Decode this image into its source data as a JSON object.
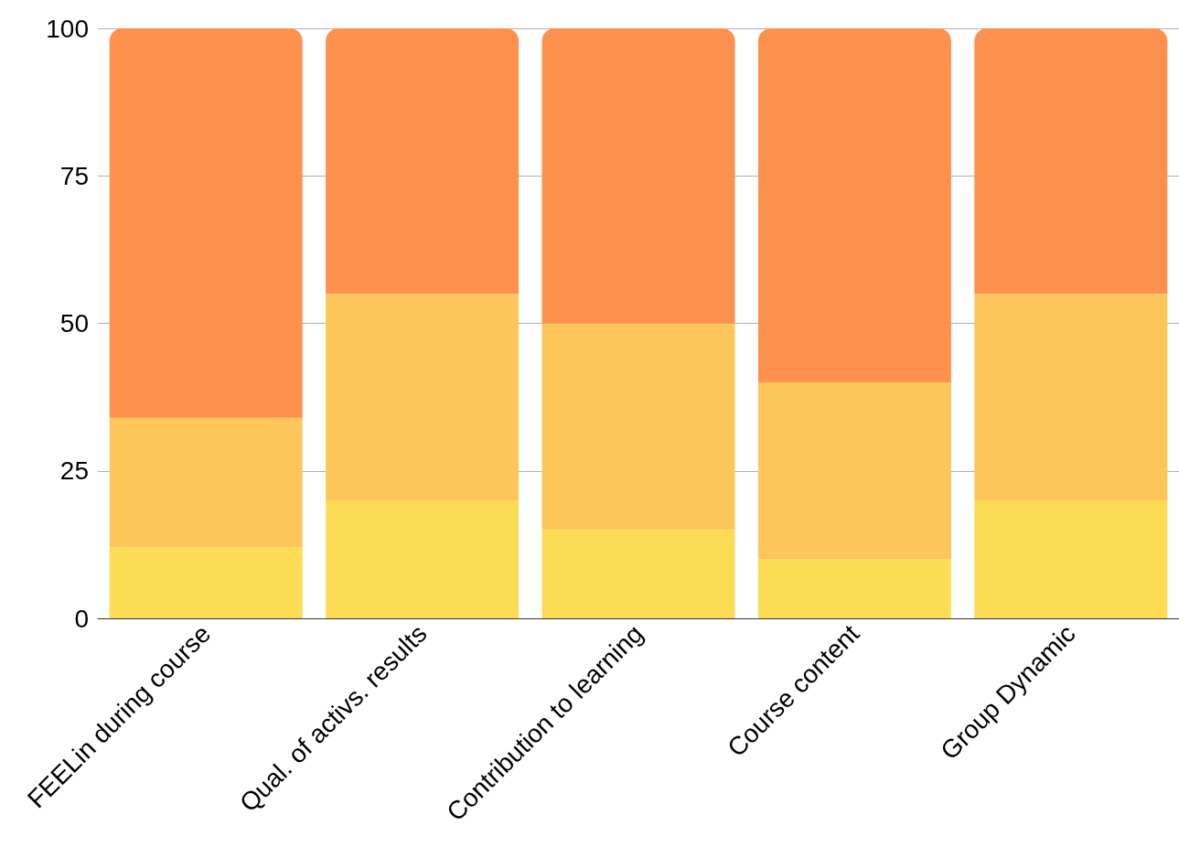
{
  "chart_data": {
    "type": "bar",
    "stacked": true,
    "categories": [
      "FEELin during course",
      "Qual. of activs. results",
      "Contribution to learning",
      "Course content",
      "Group Dynamic"
    ],
    "series": [
      {
        "color": "#fddc55",
        "values": [
          12,
          20,
          15,
          10,
          20
        ]
      },
      {
        "color": "#fdc65a",
        "values": [
          22,
          35,
          35,
          30,
          35
        ]
      },
      {
        "color": "#fe914e",
        "values": [
          66,
          45,
          50,
          60,
          45
        ]
      }
    ],
    "ylim": [
      0,
      100
    ],
    "yticks": [
      0,
      25,
      50,
      75,
      100
    ],
    "grid": "y"
  }
}
